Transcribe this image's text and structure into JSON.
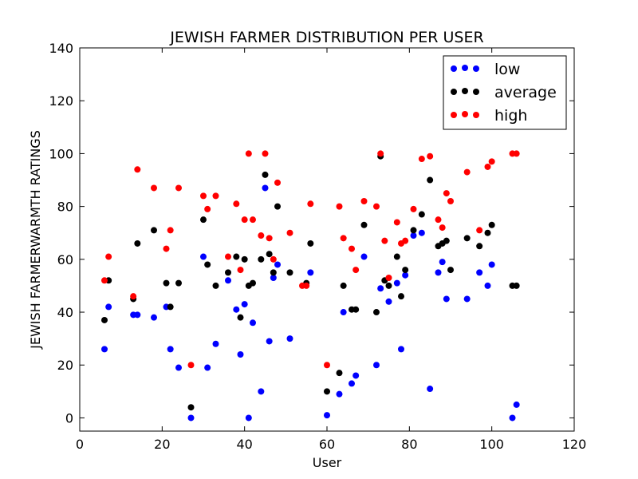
{
  "chart_data": {
    "type": "scatter",
    "title": "JEWISH FARMER DISTRIBUTION PER USER",
    "xlabel": "User",
    "ylabel": "JEWISH FARMERWARMTH RATINGS",
    "xlim": [
      0,
      120
    ],
    "ylim": [
      -5,
      140
    ],
    "xticks": [
      0,
      20,
      40,
      60,
      80,
      100,
      120
    ],
    "yticks": [
      0,
      20,
      40,
      60,
      80,
      100,
      120,
      140
    ],
    "grid": false,
    "legend_position": "top-right",
    "series": [
      {
        "name": "low",
        "color": "#0000ff",
        "points": [
          [
            6,
            26
          ],
          [
            7,
            42
          ],
          [
            13,
            39
          ],
          [
            14,
            39
          ],
          [
            18,
            38
          ],
          [
            21,
            42
          ],
          [
            22,
            26
          ],
          [
            24,
            19
          ],
          [
            27,
            0
          ],
          [
            30,
            61
          ],
          [
            31,
            19
          ],
          [
            33,
            28
          ],
          [
            36,
            52
          ],
          [
            38,
            41
          ],
          [
            39,
            24
          ],
          [
            40,
            43
          ],
          [
            41,
            0
          ],
          [
            42,
            36
          ],
          [
            44,
            10
          ],
          [
            45,
            87
          ],
          [
            46,
            29
          ],
          [
            47,
            53
          ],
          [
            48,
            58
          ],
          [
            51,
            30
          ],
          [
            56,
            55
          ],
          [
            60,
            1
          ],
          [
            63,
            9
          ],
          [
            64,
            40
          ],
          [
            66,
            13
          ],
          [
            67,
            16
          ],
          [
            69,
            61
          ],
          [
            72,
            20
          ],
          [
            73,
            49
          ],
          [
            75,
            44
          ],
          [
            77,
            51
          ],
          [
            78,
            26
          ],
          [
            79,
            54
          ],
          [
            81,
            69
          ],
          [
            83,
            70
          ],
          [
            85,
            11
          ],
          [
            87,
            55
          ],
          [
            88,
            59
          ],
          [
            89,
            45
          ],
          [
            94,
            45
          ],
          [
            97,
            55
          ],
          [
            99,
            50
          ],
          [
            100,
            58
          ],
          [
            105,
            0
          ],
          [
            106,
            5
          ]
        ]
      },
      {
        "name": "average",
        "color": "#000000",
        "points": [
          [
            6,
            37
          ],
          [
            7,
            52
          ],
          [
            13,
            45
          ],
          [
            14,
            66
          ],
          [
            18,
            71
          ],
          [
            21,
            51
          ],
          [
            22,
            42
          ],
          [
            24,
            51
          ],
          [
            27,
            4
          ],
          [
            30,
            75
          ],
          [
            31,
            58
          ],
          [
            33,
            50
          ],
          [
            36,
            55
          ],
          [
            38,
            61
          ],
          [
            39,
            38
          ],
          [
            40,
            60
          ],
          [
            41,
            50
          ],
          [
            42,
            51
          ],
          [
            44,
            60
          ],
          [
            45,
            92
          ],
          [
            46,
            62
          ],
          [
            47,
            55
          ],
          [
            48,
            80
          ],
          [
            51,
            55
          ],
          [
            55,
            51
          ],
          [
            56,
            66
          ],
          [
            60,
            10
          ],
          [
            63,
            17
          ],
          [
            64,
            50
          ],
          [
            66,
            41
          ],
          [
            67,
            41
          ],
          [
            69,
            73
          ],
          [
            72,
            40
          ],
          [
            73,
            99
          ],
          [
            74,
            52
          ],
          [
            75,
            50
          ],
          [
            77,
            61
          ],
          [
            78,
            46
          ],
          [
            79,
            56
          ],
          [
            81,
            71
          ],
          [
            83,
            77
          ],
          [
            85,
            90
          ],
          [
            87,
            65
          ],
          [
            88,
            66
          ],
          [
            89,
            67
          ],
          [
            90,
            56
          ],
          [
            94,
            68
          ],
          [
            97,
            65
          ],
          [
            99,
            70
          ],
          [
            100,
            73
          ],
          [
            105,
            50
          ],
          [
            106,
            50
          ]
        ]
      },
      {
        "name": "high",
        "color": "#ff0000",
        "points": [
          [
            6,
            52
          ],
          [
            7,
            61
          ],
          [
            13,
            46
          ],
          [
            14,
            94
          ],
          [
            18,
            87
          ],
          [
            21,
            64
          ],
          [
            22,
            71
          ],
          [
            24,
            87
          ],
          [
            27,
            20
          ],
          [
            30,
            84
          ],
          [
            31,
            79
          ],
          [
            33,
            84
          ],
          [
            36,
            61
          ],
          [
            38,
            81
          ],
          [
            39,
            56
          ],
          [
            40,
            75
          ],
          [
            41,
            100
          ],
          [
            42,
            75
          ],
          [
            44,
            69
          ],
          [
            45,
            100
          ],
          [
            46,
            68
          ],
          [
            47,
            60
          ],
          [
            48,
            89
          ],
          [
            51,
            70
          ],
          [
            54,
            50
          ],
          [
            55,
            50
          ],
          [
            56,
            81
          ],
          [
            60,
            20
          ],
          [
            63,
            80
          ],
          [
            64,
            68
          ],
          [
            66,
            64
          ],
          [
            67,
            56
          ],
          [
            69,
            82
          ],
          [
            72,
            80
          ],
          [
            73,
            100
          ],
          [
            74,
            67
          ],
          [
            75,
            53
          ],
          [
            77,
            74
          ],
          [
            78,
            66
          ],
          [
            79,
            67
          ],
          [
            81,
            79
          ],
          [
            83,
            98
          ],
          [
            85,
            99
          ],
          [
            87,
            75
          ],
          [
            88,
            72
          ],
          [
            89,
            85
          ],
          [
            90,
            82
          ],
          [
            94,
            93
          ],
          [
            97,
            71
          ],
          [
            99,
            95
          ],
          [
            100,
            97
          ],
          [
            105,
            100
          ],
          [
            106,
            100
          ]
        ]
      }
    ]
  }
}
